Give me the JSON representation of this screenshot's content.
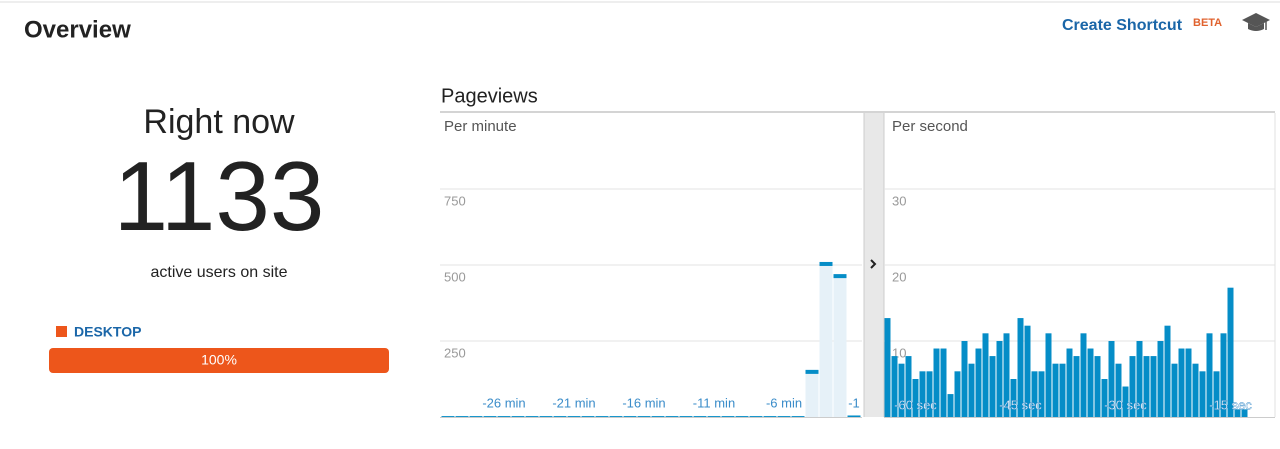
{
  "header": {
    "title": "Overview",
    "shortcut": "Create Shortcut",
    "badge": "BETA"
  },
  "summary": {
    "heading": "Right now",
    "count": 1133,
    "caption": "active users on site",
    "segments": [
      {
        "name": "DESKTOP",
        "color": "#ed561b",
        "value": 100,
        "value_label": "100%"
      }
    ]
  },
  "panel": {
    "title": "Pageviews"
  },
  "chart_data": [
    {
      "type": "bar",
      "subtitle": "Per minute",
      "color": "#058dc7",
      "fill": "#e6f1f8",
      "categories": [
        null,
        null,
        null,
        null,
        "-26 min",
        null,
        null,
        null,
        null,
        "-21 min",
        null,
        null,
        null,
        null,
        "-16 min",
        null,
        null,
        null,
        null,
        "-11 min",
        null,
        null,
        null,
        null,
        "-6 min",
        null,
        null,
        null,
        null,
        "-1"
      ],
      "values": [
        3,
        3,
        3,
        3,
        3,
        3,
        3,
        3,
        3,
        3,
        3,
        3,
        3,
        3,
        3,
        3,
        3,
        3,
        3,
        3,
        3,
        3,
        3,
        3,
        3,
        3,
        155,
        510,
        470,
        5
      ],
      "ylim": [
        0,
        1000
      ],
      "yticks": [
        250,
        500,
        750
      ],
      "grid": true
    },
    {
      "type": "bar",
      "subtitle": "Per second",
      "color": "#058dc7",
      "fill": "#058dc7",
      "categories": [
        null,
        null,
        null,
        null,
        "-60 sec",
        null,
        null,
        null,
        null,
        null,
        null,
        null,
        null,
        null,
        null,
        null,
        null,
        null,
        null,
        "-45 sec",
        null,
        null,
        null,
        null,
        null,
        null,
        null,
        null,
        null,
        null,
        null,
        null,
        null,
        null,
        "-30 sec",
        null,
        null,
        null,
        null,
        null,
        null,
        null,
        null,
        null,
        null,
        null,
        null,
        null,
        null,
        "-15 sec",
        null,
        null
      ],
      "values": [
        13,
        8,
        7,
        8,
        5,
        6,
        6,
        9,
        9,
        3,
        6,
        10,
        7,
        9,
        11,
        8,
        10,
        11,
        5,
        13,
        12,
        6,
        6,
        11,
        7,
        7,
        9,
        8,
        11,
        9,
        8,
        5,
        10,
        7,
        4,
        8,
        10,
        8,
        8,
        10,
        12,
        7,
        9,
        9,
        7,
        6,
        11,
        6,
        11,
        17,
        1,
        1
      ],
      "ylim": [
        0,
        40
      ],
      "yticks": [
        10,
        20,
        30
      ],
      "grid": true
    }
  ]
}
